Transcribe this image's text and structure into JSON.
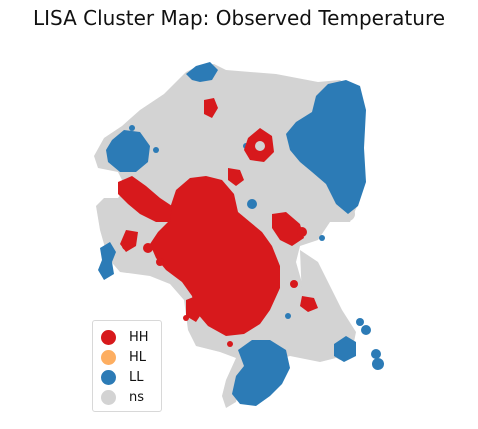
{
  "title": "LISA Cluster Map: Observed Temperature",
  "legend": [
    {
      "label": "HH",
      "color": "#d7191c"
    },
    {
      "label": "HL",
      "color": "#fdae61"
    },
    {
      "label": "LL",
      "color": "#2c7bb6"
    },
    {
      "label": "ns",
      "color": "#d3d3d3"
    }
  ],
  "colors": {
    "HH": "#d7191c",
    "HL": "#fdae61",
    "LL": "#2c7bb6",
    "ns": "#d3d3d3"
  }
}
